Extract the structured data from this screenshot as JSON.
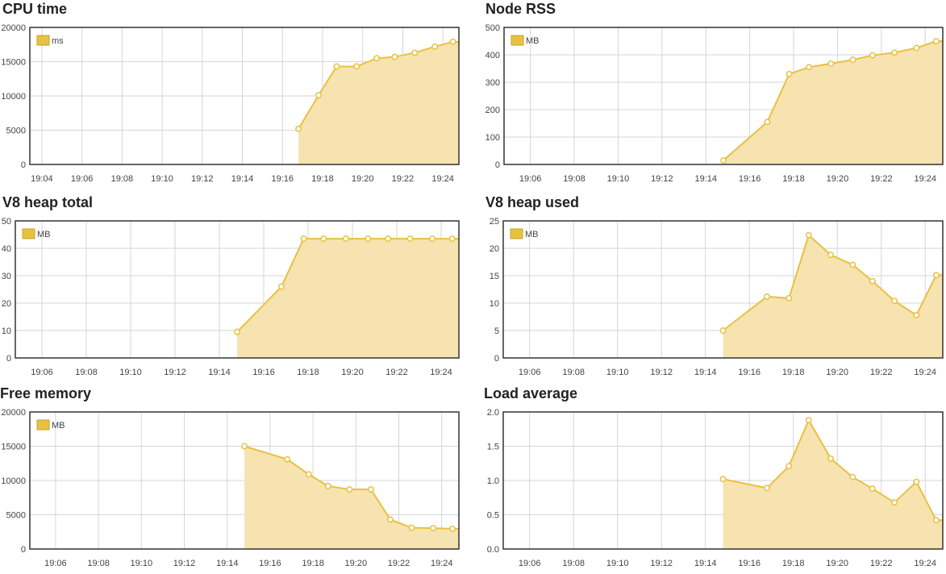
{
  "colors": {
    "accent": "#e8c141",
    "fill": "#f7e3b0",
    "grid": "#d6d6d6",
    "frame": "#333333"
  },
  "chart_data": [
    {
      "type": "area",
      "title": "CPU time",
      "legend": "ms",
      "legend_position": "top-left",
      "grid": true,
      "x_ticks": [
        "19:04",
        "19:06",
        "19:08",
        "19:10",
        "19:12",
        "19:14",
        "19:16",
        "19:18",
        "19:20",
        "19:22",
        "19:24"
      ],
      "xlim": [
        "19:03.4",
        "19:24.8"
      ],
      "ylim": [
        0,
        20000
      ],
      "y_ticks": [
        "0",
        "5000",
        "10000",
        "15000",
        "20000"
      ],
      "series": [
        {
          "x": [
            "19:16.8",
            "19:17.8",
            "19:18.7",
            "19:19.7",
            "19:20.7",
            "19:21.6",
            "19:22.6",
            "19:23.6",
            "19:24.5"
          ],
          "values": [
            5200,
            10100,
            14300,
            14300,
            15500,
            15700,
            16300,
            17200,
            17900
          ]
        }
      ]
    },
    {
      "type": "area",
      "title": "Node RSS",
      "legend": "MB",
      "legend_position": "top-left",
      "grid": true,
      "x_ticks": [
        "19:06",
        "19:08",
        "19:10",
        "19:12",
        "19:14",
        "19:16",
        "19:18",
        "19:20",
        "19:22",
        "19:24"
      ],
      "xlim": [
        "19:04.8",
        "19:24.8"
      ],
      "ylim": [
        0,
        500
      ],
      "y_ticks": [
        "0",
        "100",
        "200",
        "300",
        "400",
        "500"
      ],
      "series": [
        {
          "x": [
            "19:14.8",
            "19:16.8",
            "19:17.8",
            "19:18.7",
            "19:19.7",
            "19:20.7",
            "19:21.6",
            "19:22.6",
            "19:23.6",
            "19:24.5"
          ],
          "values": [
            15,
            155,
            330,
            355,
            368,
            382,
            398,
            408,
            425,
            450
          ]
        }
      ]
    },
    {
      "type": "area",
      "title": "V8 heap total",
      "legend": "MB",
      "legend_position": "top-left",
      "grid": true,
      "x_ticks": [
        "19:06",
        "19:08",
        "19:10",
        "19:12",
        "19:14",
        "19:16",
        "19:18",
        "19:20",
        "19:22",
        "19:24"
      ],
      "xlim": [
        "19:04.8",
        "19:24.8"
      ],
      "ylim": [
        0,
        50
      ],
      "y_ticks": [
        "0",
        "10",
        "20",
        "30",
        "40",
        "50"
      ],
      "series": [
        {
          "x": [
            "19:14.8",
            "19:16.8",
            "19:17.8",
            "19:18.7",
            "19:19.7",
            "19:20.7",
            "19:21.6",
            "19:22.6",
            "19:23.6",
            "19:24.5"
          ],
          "values": [
            9.5,
            26,
            43.5,
            43.5,
            43.5,
            43.5,
            43.5,
            43.5,
            43.5,
            43.5
          ]
        }
      ]
    },
    {
      "type": "area",
      "title": "V8 heap used",
      "legend": "MB",
      "legend_position": "top-left",
      "grid": true,
      "x_ticks": [
        "19:06",
        "19:08",
        "19:10",
        "19:12",
        "19:14",
        "19:16",
        "19:18",
        "19:20",
        "19:22",
        "19:24"
      ],
      "xlim": [
        "19:04.8",
        "19:24.8"
      ],
      "ylim": [
        0,
        25
      ],
      "y_ticks": [
        "0",
        "5",
        "10",
        "15",
        "20",
        "25"
      ],
      "series": [
        {
          "x": [
            "19:14.8",
            "19:16.8",
            "19:17.8",
            "19:18.7",
            "19:19.7",
            "19:20.7",
            "19:21.6",
            "19:22.6",
            "19:23.6",
            "19:24.5"
          ],
          "values": [
            5.0,
            11.2,
            10.9,
            22.4,
            18.8,
            17.0,
            14.0,
            10.4,
            7.8,
            15.1
          ]
        }
      ]
    },
    {
      "type": "area",
      "title": "Free memory",
      "legend": "MB",
      "legend_position": "top-left",
      "grid": true,
      "x_ticks": [
        "19:06",
        "19:08",
        "19:10",
        "19:12",
        "19:14",
        "19:16",
        "19:18",
        "19:20",
        "19:22",
        "19:24"
      ],
      "xlim": [
        "19:04.8",
        "19:24.8"
      ],
      "ylim": [
        0,
        20000
      ],
      "y_ticks": [
        "0",
        "5000",
        "10000",
        "15000",
        "20000"
      ],
      "series": [
        {
          "x": [
            "19:14.8",
            "19:16.8",
            "19:17.8",
            "19:18.7",
            "19:19.7",
            "19:20.7",
            "19:21.6",
            "19:22.6",
            "19:23.6",
            "19:24.5"
          ],
          "values": [
            15000,
            13100,
            10900,
            9200,
            8700,
            8700,
            4300,
            3100,
            3050,
            2950
          ]
        }
      ]
    },
    {
      "type": "area",
      "title": "Load average",
      "legend": "",
      "legend_position": "",
      "grid": true,
      "x_ticks": [
        "19:06",
        "19:08",
        "19:10",
        "19:12",
        "19:14",
        "19:16",
        "19:18",
        "19:20",
        "19:22",
        "19:24"
      ],
      "xlim": [
        "19:04.8",
        "19:24.8"
      ],
      "ylim": [
        0,
        2
      ],
      "y_ticks": [
        "0.0",
        "0.5",
        "1.0",
        "1.5",
        "2.0"
      ],
      "series": [
        {
          "x": [
            "19:14.8",
            "19:16.8",
            "19:17.8",
            "19:18.7",
            "19:19.7",
            "19:20.7",
            "19:21.6",
            "19:22.6",
            "19:23.6",
            "19:24.5"
          ],
          "values": [
            1.02,
            0.89,
            1.21,
            1.88,
            1.32,
            1.05,
            0.88,
            0.68,
            0.98,
            0.42
          ]
        }
      ]
    }
  ]
}
